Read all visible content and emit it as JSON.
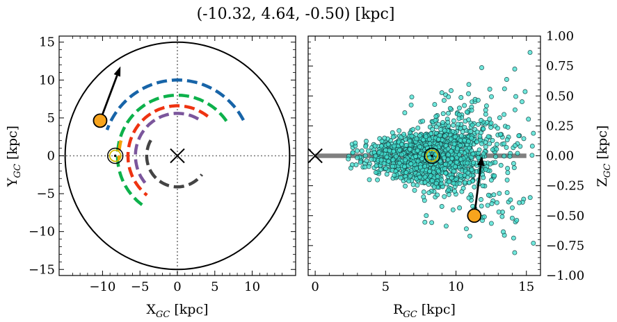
{
  "figure": {
    "title": "(-10.32, 4.64, -0.50) [kpc]"
  },
  "chart_data": [
    {
      "type": "scatter",
      "panel": "left",
      "xlabel": "X_GC [kpc]",
      "ylabel": "Y_GC [kpc]",
      "xlim": [
        -15.8,
        15.8
      ],
      "ylim": [
        -15.8,
        15.8
      ],
      "xticks": [
        -10,
        -5,
        0,
        5,
        10
      ],
      "yticks": [
        -15,
        -10,
        -5,
        0,
        5,
        10,
        15
      ],
      "xtick_labels": [
        "−10",
        "−5",
        "0",
        "5",
        "10"
      ],
      "ytick_labels": [
        "−15",
        "−10",
        "−5",
        "0",
        "5",
        "10",
        "15"
      ],
      "grid": false,
      "disk_edge_radius": 15,
      "galactic_center": [
        0,
        0
      ],
      "sun_position": [
        -8.3,
        0
      ],
      "source_position": [
        -10.32,
        4.64
      ],
      "proper_motion_arrow": {
        "from": [
          -10.32,
          4.64
        ],
        "to": [
          -7.6,
          11.8
        ]
      },
      "spiral_arms": [
        {
          "color": "#1764a8",
          "radius": 10.0,
          "angle_start_deg": 28,
          "angle_end_deg": 160
        },
        {
          "color": "#0db14b",
          "radius": 8.0,
          "angle_start_deg": 35,
          "angle_end_deg": 238
        },
        {
          "color": "#f4a100",
          "radius": 7.8,
          "angle_start_deg": 165,
          "angle_end_deg": 184
        },
        {
          "color": "#ee3311",
          "radius": 6.6,
          "angle_start_deg": 52,
          "angle_end_deg": 232
        },
        {
          "color": "#7b569c",
          "radius": 5.6,
          "angle_start_deg": 60,
          "angle_end_deg": 225
        },
        {
          "color": "#444444",
          "radius": 4.1,
          "angle_start_deg": 150,
          "angle_end_deg": 323
        }
      ],
      "dotted_guides": {
        "x": 0,
        "y": 0
      }
    },
    {
      "type": "scatter",
      "panel": "right",
      "xlabel": "R_GC [kpc]",
      "ylabel": "Z_GC [kpc]",
      "xlim": [
        -0.5,
        16.0
      ],
      "ylim": [
        -1.0,
        1.0
      ],
      "xticks": [
        0,
        5,
        10,
        15
      ],
      "yticks": [
        -1.0,
        -0.75,
        -0.5,
        -0.25,
        0.0,
        0.25,
        0.5,
        0.75,
        1.0
      ],
      "xtick_labels": [
        "0",
        "5",
        "10",
        "15"
      ],
      "ytick_labels": [
        "−1.00",
        "−0.75",
        "−0.50",
        "−0.25",
        "0.00",
        "0.25",
        "0.50",
        "0.75",
        "1.00"
      ],
      "grid": false,
      "galactic_plane": {
        "x": [
          0,
          15
        ],
        "y": 0
      },
      "galactic_center": [
        0,
        0
      ],
      "sun_position": [
        8.3,
        0.0
      ],
      "source_position": [
        11.3,
        -0.5
      ],
      "proper_motion_arrow": {
        "from": [
          11.3,
          -0.5
        ],
        "to": [
          11.85,
          0.0
        ]
      },
      "points": {
        "color": "#40e0d0",
        "edge_color": "#1a4a4a",
        "approx_count": 1400,
        "concentration_center": [
          8.3,
          0.0
        ],
        "r_spread_kpc": 2.2,
        "z_spread_kpc": 0.12
      }
    }
  ]
}
